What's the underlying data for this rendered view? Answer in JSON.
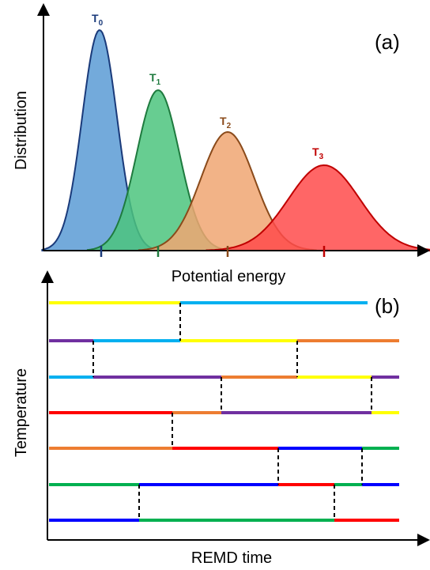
{
  "panel_a": {
    "tag": "(a)",
    "ylabel": "Distribution",
    "xlabel": "Potential energy",
    "curves": [
      {
        "label_main": "T",
        "label_sub": "0",
        "color": "#1a3a7a",
        "fill": "#5b9bd5"
      },
      {
        "label_main": "T",
        "label_sub": "1",
        "color": "#1e7a3e",
        "fill": "#4cc47e"
      },
      {
        "label_main": "T",
        "label_sub": "2",
        "color": "#8a4a1a",
        "fill": "#f0a672"
      },
      {
        "label_main": "T",
        "label_sub": "3",
        "color": "#c00000",
        "fill": "#ff4b4b"
      }
    ]
  },
  "panel_b": {
    "tag": "(b)",
    "ylabel": "Temperature",
    "xlabel": "REMD time",
    "colors": {
      "yellow": "#ffff00",
      "cyan": "#00b0f0",
      "purple": "#7030a0",
      "orange": "#ed7d31",
      "red": "#ff0000",
      "green": "#00b050",
      "blue": "#0000ff"
    }
  }
}
